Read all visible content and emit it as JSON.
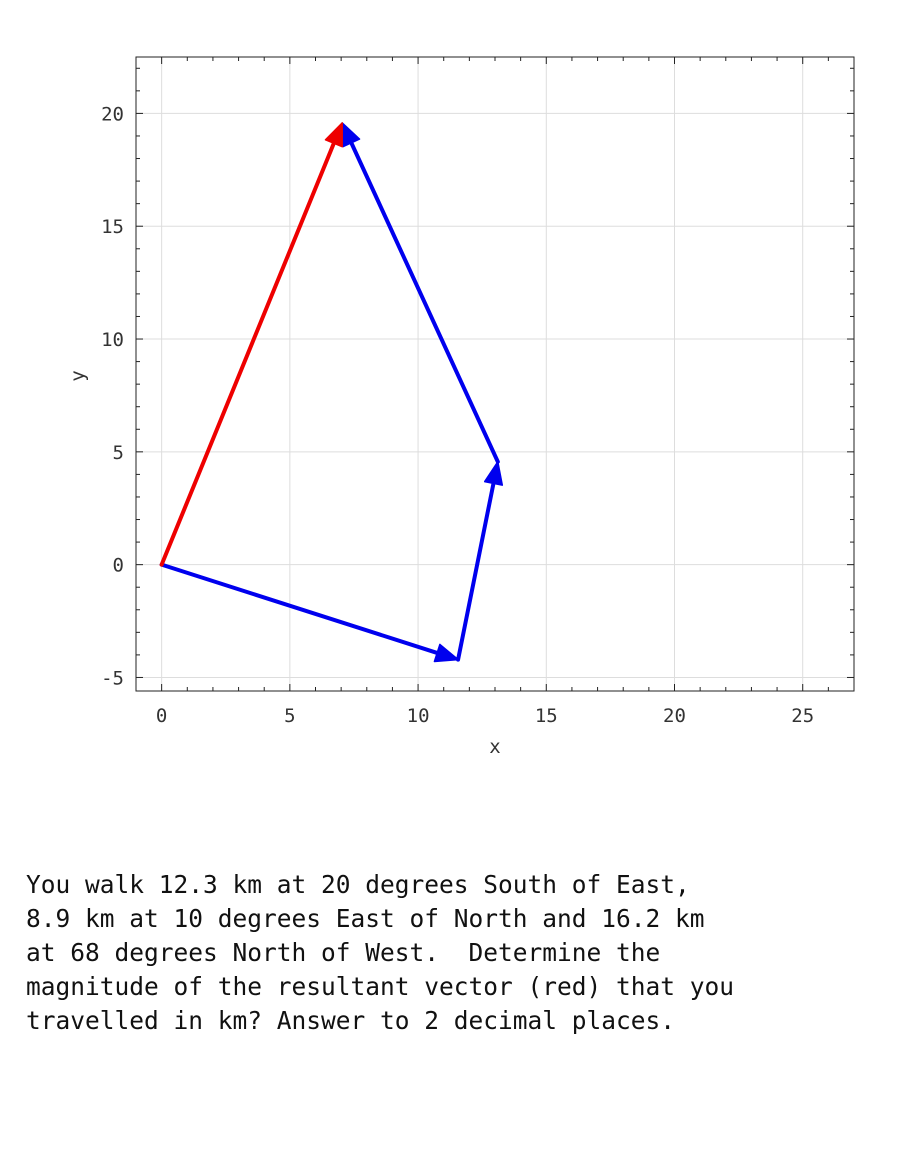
{
  "chart_data": {
    "type": "vector-plot",
    "xlabel": "x",
    "ylabel": "y",
    "xlim": [
      -1,
      27
    ],
    "ylim": [
      -5.6,
      22.5
    ],
    "xticks": [
      0,
      5,
      10,
      15,
      20,
      25
    ],
    "yticks": [
      -5,
      0,
      5,
      10,
      15,
      20
    ],
    "grid": true,
    "vectors": [
      {
        "from": [
          0,
          0
        ],
        "to": [
          11.56,
          -4.21
        ],
        "color": "#0000ee"
      },
      {
        "from": [
          11.56,
          -4.21
        ],
        "to": [
          13.11,
          4.56
        ],
        "color": "#0000ee"
      },
      {
        "from": [
          13.11,
          4.56
        ],
        "to": [
          7.04,
          19.58
        ],
        "color": "#0000ee"
      },
      {
        "from": [
          0,
          0
        ],
        "to": [
          7.04,
          19.58
        ],
        "color": "#ee0000"
      }
    ]
  },
  "question": {
    "lines": [
      "You walk 12.3 km at 20 degrees South of East,",
      "8.9 km at 10 degrees East of North and 16.2 km",
      "at 68 degrees North of West.  Determine the",
      "magnitude of the resultant vector (red) that you",
      "travelled in km? Answer to 2 decimal places."
    ]
  }
}
